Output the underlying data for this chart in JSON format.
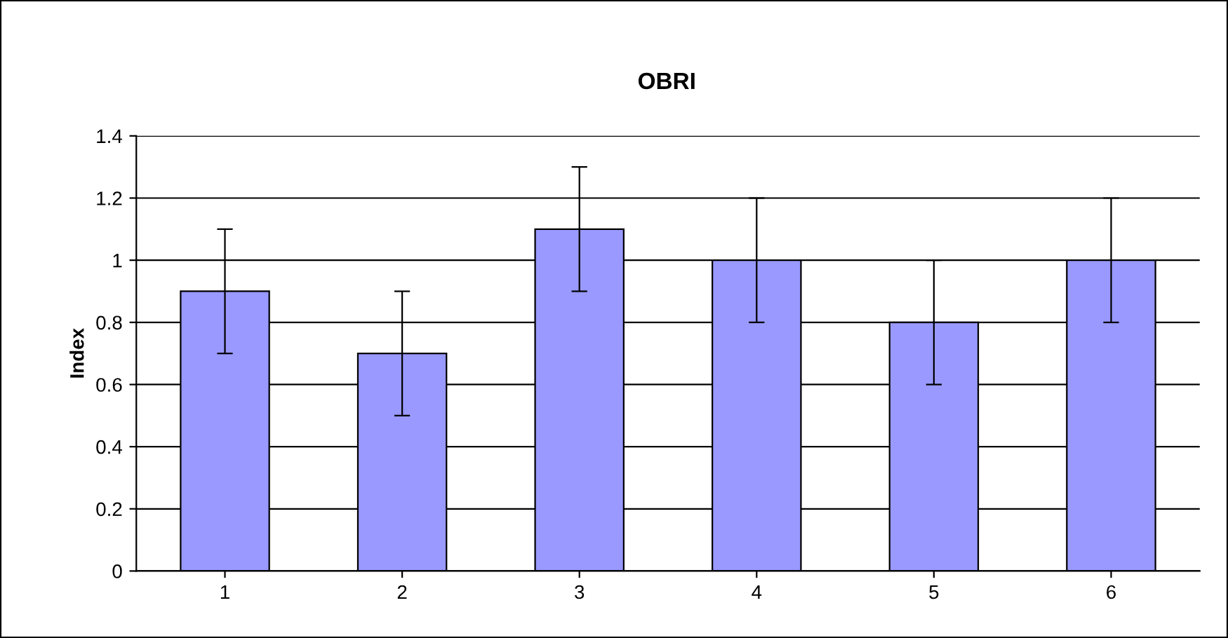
{
  "chart_data": {
    "type": "bar",
    "title": "OBRI",
    "ylabel": "Index",
    "categories": [
      "1",
      "2",
      "3",
      "4",
      "5",
      "6"
    ],
    "values": [
      0.9,
      0.7,
      1.1,
      1.0,
      0.8,
      1.0
    ],
    "errors": [
      0.2,
      0.2,
      0.2,
      0.2,
      0.2,
      0.2
    ],
    "color": "#9999ff",
    "ylim": [
      0,
      1.4
    ],
    "yticks": [
      0,
      0.2,
      0.4,
      0.6,
      0.8,
      1,
      1.2,
      1.4
    ],
    "grid": "y"
  }
}
